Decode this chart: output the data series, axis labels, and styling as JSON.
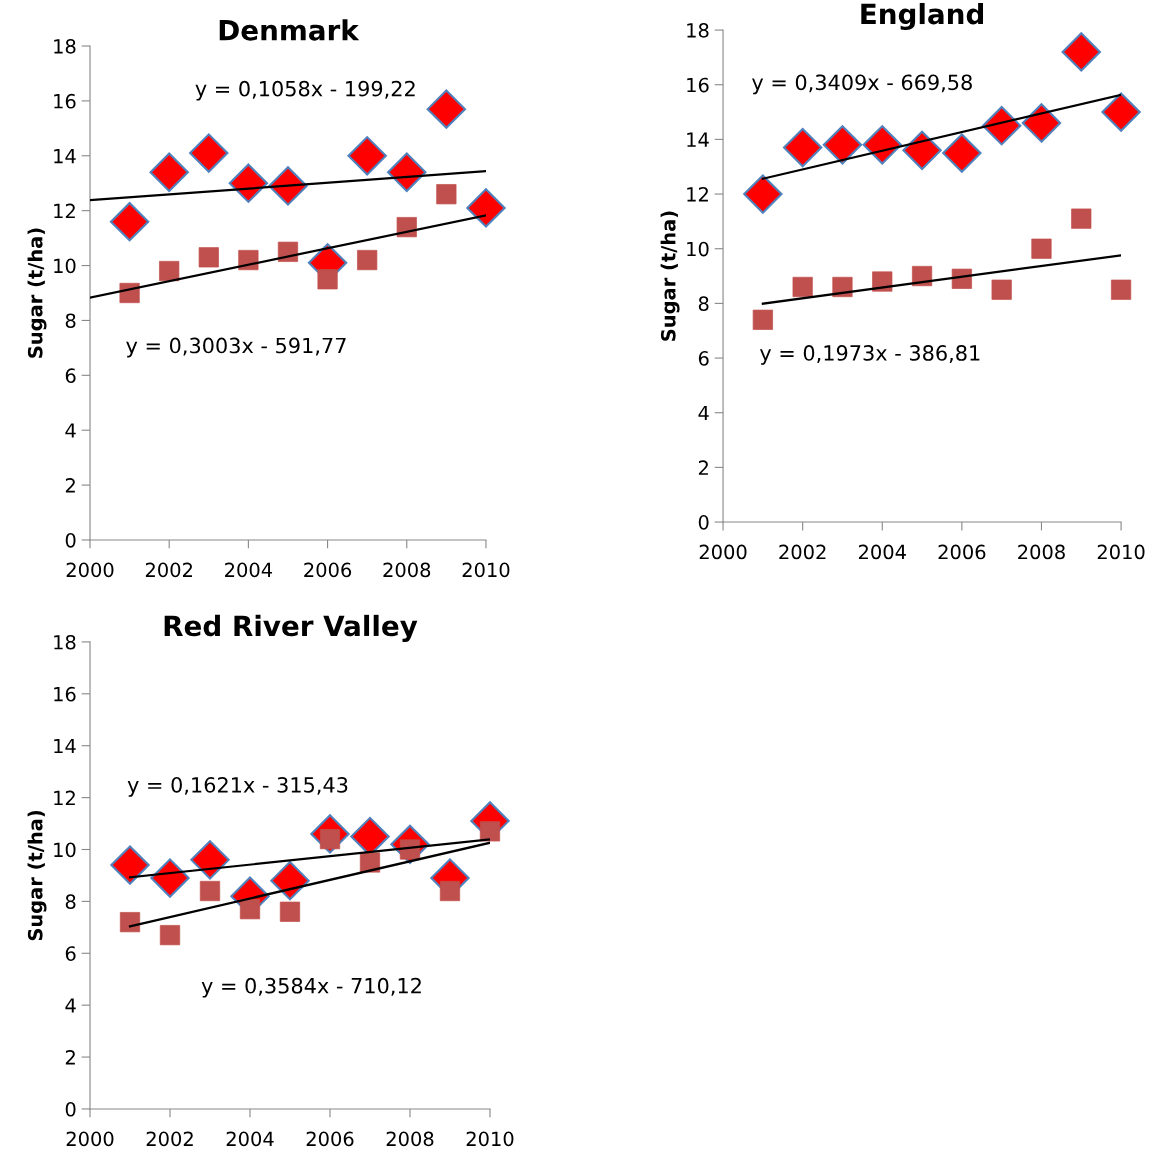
{
  "chart_data": [
    {
      "type": "scatter",
      "title": "Denmark",
      "ylabel": "Sugar (t/ha)",
      "xlim": [
        2000,
        2010
      ],
      "ylim": [
        0,
        18
      ],
      "xticks": [
        2000,
        2002,
        2004,
        2006,
        2008,
        2010
      ],
      "yticks": [
        0,
        2,
        4,
        6,
        8,
        10,
        12,
        14,
        16,
        18
      ],
      "grid": false,
      "x": [
        2001,
        2002,
        2003,
        2004,
        2005,
        2006,
        2007,
        2008,
        2009,
        2010
      ],
      "series": [
        {
          "color": "#ff0000",
          "marker": "diamond",
          "values": [
            11.6,
            13.4,
            14.1,
            13.0,
            12.9,
            10.1,
            14.0,
            13.4,
            15.7,
            12.1
          ]
        },
        {
          "color": "#c0504d",
          "marker": "square",
          "values": [
            9.0,
            9.8,
            10.3,
            10.2,
            10.5,
            9.5,
            10.2,
            11.4,
            12.6,
            null
          ]
        },
        {
          "type": "line",
          "color": "#000000",
          "x": [
            2000,
            2010
          ],
          "values": [
            12.38,
            13.44
          ]
        },
        {
          "type": "line",
          "color": "#000000",
          "x": [
            2000,
            2010
          ],
          "values": [
            8.83,
            11.83
          ]
        }
      ],
      "annotations": [
        "y = 0,1058x - 199,22",
        "y = 0,3003x - 591,77"
      ]
    },
    {
      "type": "scatter",
      "title": "England",
      "ylabel": "Sugar (t/ha)",
      "xlim": [
        2000,
        2010
      ],
      "ylim": [
        0,
        18
      ],
      "xticks": [
        2000,
        2002,
        2004,
        2006,
        2008,
        2010
      ],
      "yticks": [
        0,
        2,
        4,
        6,
        8,
        10,
        12,
        14,
        16,
        18
      ],
      "grid": false,
      "x": [
        2001,
        2002,
        2003,
        2004,
        2005,
        2006,
        2007,
        2008,
        2009,
        2010
      ],
      "series": [
        {
          "color": "#ff0000",
          "marker": "diamond",
          "values": [
            12.0,
            13.7,
            13.8,
            13.8,
            13.6,
            13.5,
            14.5,
            14.6,
            17.2,
            15.0
          ]
        },
        {
          "color": "#c0504d",
          "marker": "square",
          "values": [
            7.4,
            8.6,
            8.6,
            8.8,
            9.0,
            8.9,
            8.5,
            10.0,
            11.1,
            8.5
          ]
        },
        {
          "type": "line",
          "color": "#000000",
          "x": [
            2001,
            2010
          ],
          "values": [
            12.56,
            15.63
          ]
        },
        {
          "type": "line",
          "color": "#000000",
          "x": [
            2001,
            2010
          ],
          "values": [
            7.99,
            9.76
          ]
        }
      ],
      "annotations": [
        "y = 0,3409x - 669,58",
        "y = 0,1973x - 386,81"
      ]
    },
    {
      "type": "scatter",
      "title": "Red River Valley",
      "ylabel": "Sugar (t/ha)",
      "xlim": [
        2000,
        2010
      ],
      "ylim": [
        0,
        18
      ],
      "xticks": [
        2000,
        2002,
        2004,
        2006,
        2008,
        2010
      ],
      "yticks": [
        0,
        2,
        4,
        6,
        8,
        10,
        12,
        14,
        16,
        18
      ],
      "grid": false,
      "x": [
        2001,
        2002,
        2003,
        2004,
        2005,
        2006,
        2007,
        2008,
        2009,
        2010
      ],
      "series": [
        {
          "color": "#ff0000",
          "marker": "diamond",
          "values": [
            9.4,
            8.9,
            9.6,
            8.2,
            8.8,
            10.6,
            10.5,
            10.2,
            8.9,
            11.1
          ]
        },
        {
          "color": "#c0504d",
          "marker": "square",
          "values": [
            7.2,
            6.7,
            8.4,
            7.7,
            7.6,
            10.4,
            9.5,
            10.0,
            8.4,
            10.7
          ]
        },
        {
          "type": "line",
          "color": "#000000",
          "x": [
            2001,
            2010
          ],
          "values": [
            8.93,
            10.39
          ]
        },
        {
          "type": "line",
          "color": "#000000",
          "x": [
            2001,
            2010
          ],
          "values": [
            7.04,
            10.26
          ]
        }
      ],
      "annotations": [
        "y = 0,1621x - 315,43",
        "y = 0,3584x - 710,12"
      ]
    }
  ]
}
